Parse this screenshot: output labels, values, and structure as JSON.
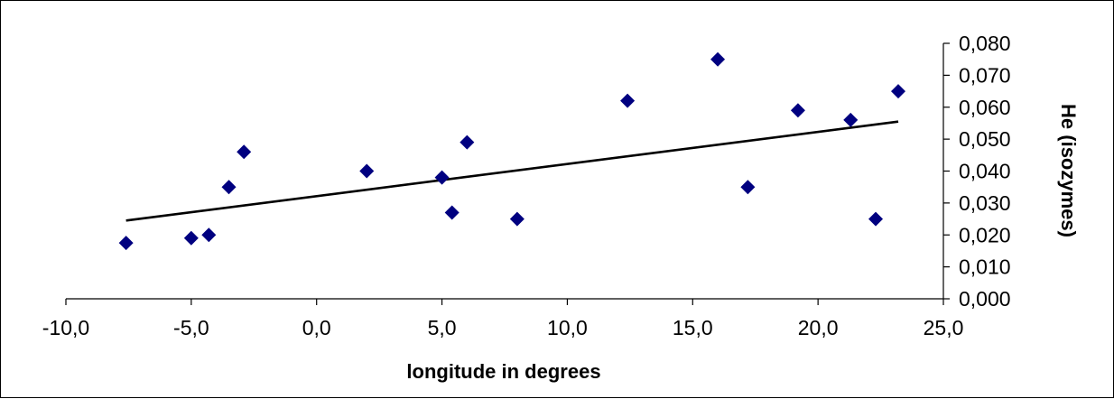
{
  "chart_data": {
    "type": "scatter",
    "title": "",
    "xlabel": "longitude in degrees",
    "ylabel": "He (isozymes)",
    "xlim": [
      -10,
      25
    ],
    "ylim": [
      0,
      0.08
    ],
    "x_ticks": [
      "-10,0",
      "-5,0",
      "0,0",
      "5,0",
      "10,0",
      "15,0",
      "20,0",
      "25,0"
    ],
    "x_tick_values": [
      -10,
      -5,
      0,
      5,
      10,
      15,
      20,
      25
    ],
    "y_ticks": [
      "0,000",
      "0,010",
      "0,020",
      "0,030",
      "0,040",
      "0,050",
      "0,060",
      "0,070",
      "0,080"
    ],
    "y_tick_values": [
      0,
      0.01,
      0.02,
      0.03,
      0.04,
      0.05,
      0.06,
      0.07,
      0.08
    ],
    "y_axis_side": "right",
    "grid": false,
    "legend": "none",
    "marker_color": "#000080",
    "marker_shape": "diamond",
    "series": [
      {
        "points": [
          {
            "x": -7.6,
            "y": 0.0175
          },
          {
            "x": -5.0,
            "y": 0.019
          },
          {
            "x": -4.3,
            "y": 0.02
          },
          {
            "x": -3.5,
            "y": 0.035
          },
          {
            "x": -2.9,
            "y": 0.046
          },
          {
            "x": 2.0,
            "y": 0.04
          },
          {
            "x": 5.0,
            "y": 0.038
          },
          {
            "x": 5.4,
            "y": 0.027
          },
          {
            "x": 6.0,
            "y": 0.049
          },
          {
            "x": 8.0,
            "y": 0.025
          },
          {
            "x": 12.4,
            "y": 0.062
          },
          {
            "x": 16.0,
            "y": 0.075
          },
          {
            "x": 17.2,
            "y": 0.035
          },
          {
            "x": 19.2,
            "y": 0.059
          },
          {
            "x": 21.3,
            "y": 0.056
          },
          {
            "x": 22.3,
            "y": 0.025
          },
          {
            "x": 23.2,
            "y": 0.065
          }
        ]
      }
    ],
    "trendline": {
      "type": "linear",
      "color": "#000000",
      "x_start": -7.6,
      "y_start": 0.0245,
      "x_end": 23.2,
      "y_end": 0.0555
    }
  }
}
